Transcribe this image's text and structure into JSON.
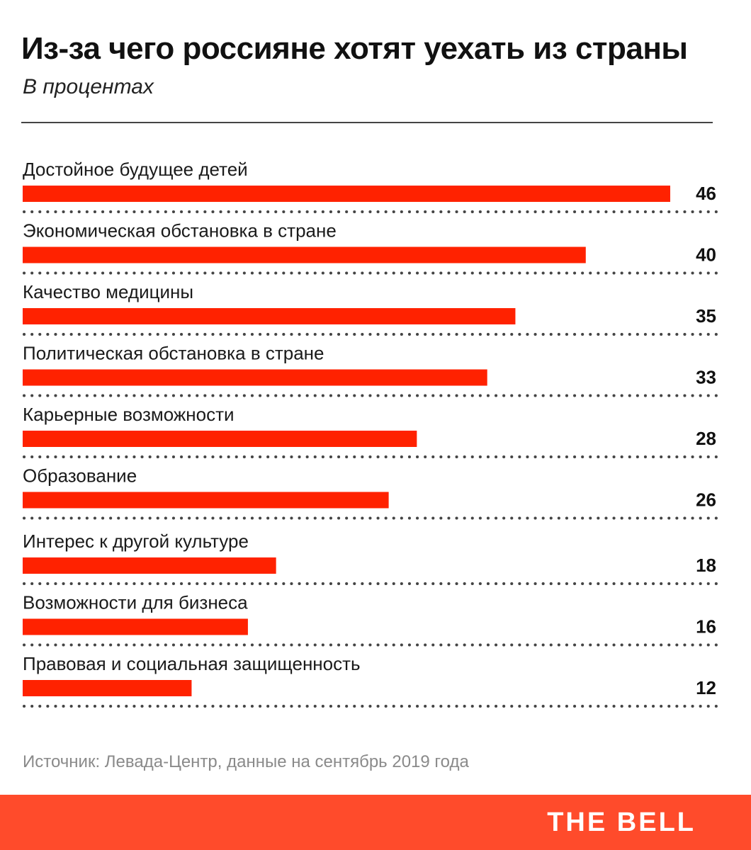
{
  "header": {
    "title": "Из-за чего россияне хотят уехать из страны",
    "subtitle": "В процентах"
  },
  "chart_data": {
    "type": "bar",
    "orientation": "horizontal",
    "title": "Из-за чего россияне хотят уехать из страны",
    "subtitle": "В процентах",
    "categories": [
      "Достойное будущее детей",
      "Экономическая обстановка в стране",
      "Качество медицины",
      "Политическая обстановка в стране",
      "Карьерные возможности",
      "Образование",
      "Интерес к другой культуре",
      "Возможности для бизнеса",
      "Правовая и социальная защищенность"
    ],
    "values": [
      46,
      40,
      35,
      33,
      28,
      26,
      18,
      16,
      12
    ],
    "xlim": [
      0,
      46
    ],
    "grid": false,
    "legend": "none",
    "bar_color": "#ff2200"
  },
  "footer": {
    "source": "Источник:  Левада-Центр, данные на сентябрь 2019 года",
    "brand": "THE BELL"
  },
  "colors": {
    "bar": "#ff2200",
    "footer_band": "#ff4b2b",
    "source_text": "#8a8a8a",
    "divider": "#444444"
  }
}
